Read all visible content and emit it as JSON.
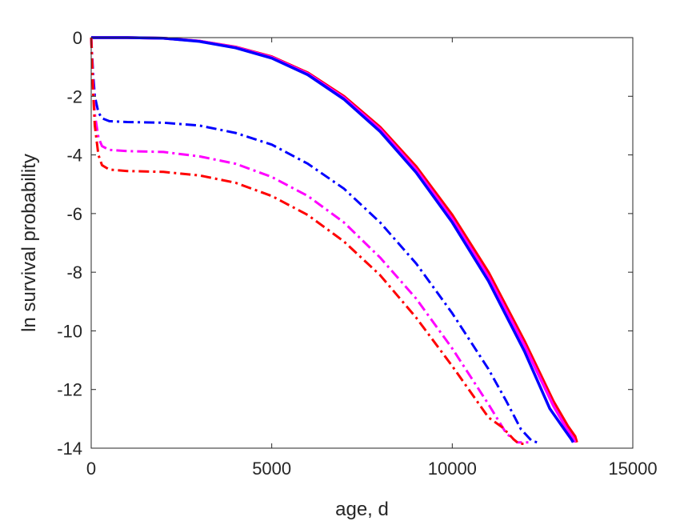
{
  "chart_data": {
    "type": "line",
    "title": "",
    "xlabel": "age, d",
    "ylabel": "ln survival probability",
    "xlim": [
      0,
      15000
    ],
    "ylim": [
      -14,
      0
    ],
    "xticks": [
      0,
      5000,
      10000,
      15000
    ],
    "yticks": [
      0,
      -2,
      -4,
      -6,
      -8,
      -10,
      -12,
      -14
    ],
    "grid": false,
    "legend": "none",
    "series": [
      {
        "color": "#ff0000",
        "style": "solid",
        "x": [
          0,
          1000,
          2000,
          3000,
          4000,
          5000,
          6000,
          7000,
          8000,
          9000,
          10000,
          11000,
          12000,
          12800,
          13200,
          13400,
          13450
        ],
        "y": [
          0,
          0,
          -0.02,
          -0.12,
          -0.32,
          -0.65,
          -1.2,
          -2.0,
          -3.05,
          -4.4,
          -6.05,
          -8.0,
          -10.35,
          -12.4,
          -13.25,
          -13.6,
          -13.8
        ]
      },
      {
        "color": "#ff00ff",
        "style": "solid",
        "x": [
          0,
          1000,
          2000,
          3000,
          4000,
          5000,
          6000,
          7000,
          8000,
          9000,
          10000,
          11000,
          12000,
          12800,
          13150,
          13350,
          13400
        ],
        "y": [
          0,
          0,
          -0.02,
          -0.12,
          -0.33,
          -0.67,
          -1.23,
          -2.05,
          -3.12,
          -4.5,
          -6.18,
          -8.15,
          -10.5,
          -12.55,
          -13.3,
          -13.65,
          -13.8
        ]
      },
      {
        "color": "#0000ff",
        "style": "solid",
        "x": [
          0,
          1000,
          2000,
          3000,
          4000,
          5000,
          6000,
          7000,
          8000,
          9000,
          10000,
          11000,
          12000,
          12700,
          13100,
          13300,
          13350
        ],
        "y": [
          0,
          0,
          -0.02,
          -0.13,
          -0.35,
          -0.7,
          -1.27,
          -2.1,
          -3.2,
          -4.6,
          -6.3,
          -8.3,
          -10.7,
          -12.65,
          -13.35,
          -13.7,
          -13.8
        ]
      },
      {
        "color": "#0000ff",
        "style": "dashdot",
        "x": [
          0,
          50,
          100,
          200,
          300,
          500,
          1000,
          2000,
          3000,
          4000,
          5000,
          6000,
          7000,
          8000,
          9000,
          10000,
          11000,
          11500,
          11900,
          12200,
          12350
        ],
        "y": [
          0,
          -1.2,
          -2.0,
          -2.55,
          -2.75,
          -2.85,
          -2.88,
          -2.9,
          -3.0,
          -3.25,
          -3.65,
          -4.3,
          -5.15,
          -6.3,
          -7.7,
          -9.4,
          -11.3,
          -12.4,
          -13.35,
          -13.75,
          -13.8
        ]
      },
      {
        "color": "#ff00ff",
        "style": "dashdot",
        "x": [
          0,
          50,
          100,
          200,
          300,
          500,
          1000,
          2000,
          3000,
          4000,
          5000,
          6000,
          7000,
          8000,
          9000,
          10000,
          11000,
          11500,
          11800,
          12000,
          12150
        ],
        "y": [
          0,
          -1.5,
          -2.6,
          -3.4,
          -3.7,
          -3.83,
          -3.87,
          -3.9,
          -4.05,
          -4.3,
          -4.75,
          -5.4,
          -6.3,
          -7.5,
          -8.9,
          -10.6,
          -12.5,
          -13.5,
          -13.8,
          -13.8,
          -13.8
        ]
      },
      {
        "color": "#ff0000",
        "style": "dashdot",
        "x": [
          0,
          50,
          100,
          200,
          300,
          500,
          1000,
          2000,
          3000,
          4000,
          5000,
          6000,
          7000,
          8000,
          9000,
          10000,
          11000,
          11400,
          11700,
          11850,
          12050
        ],
        "y": [
          0,
          -1.8,
          -3.0,
          -4.0,
          -4.35,
          -4.5,
          -4.55,
          -4.58,
          -4.7,
          -4.95,
          -5.4,
          -6.05,
          -6.95,
          -8.1,
          -9.55,
          -11.2,
          -12.95,
          -13.3,
          -13.7,
          -13.85,
          -13.85
        ]
      }
    ]
  }
}
